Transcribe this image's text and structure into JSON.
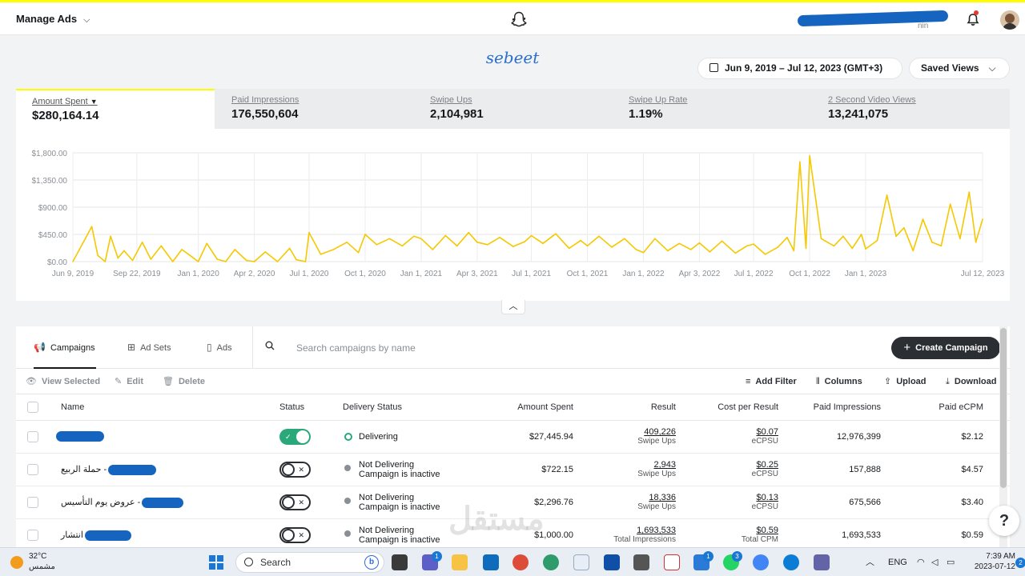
{
  "header": {
    "manage_label": "Manage Ads",
    "user_suffix": "nin"
  },
  "brand": "sebeet",
  "date_range": "Jun 9, 2019 – Jul 12, 2023 (GMT+3)",
  "saved_views": "Saved Views",
  "stats": [
    {
      "label": "Amount Spent",
      "value": "$280,164.14"
    },
    {
      "label": "Paid Impressions",
      "value": "176,550,604"
    },
    {
      "label": "Swipe Ups",
      "value": "2,104,981"
    },
    {
      "label": "Swipe Up Rate",
      "value": "1.19%"
    },
    {
      "label": "2 Second Video Views",
      "value": "13,241,075"
    }
  ],
  "chart_data": {
    "type": "line",
    "title": "",
    "xlabel": "",
    "ylabel": "",
    "color": "#f5c800",
    "ylim": [
      0,
      1800
    ],
    "yticks": [
      "$1,800.00",
      "$1,350.00",
      "$900.00",
      "$450.00",
      "$0.00"
    ],
    "ytick_values": [
      1800,
      1350,
      900,
      450,
      0
    ],
    "xticks": [
      "Jun 9, 2019",
      "Sep 22, 2019",
      "Jan 1, 2020",
      "Apr 2, 2020",
      "Jul 1, 2020",
      "Oct 1, 2020",
      "Jan 1, 2021",
      "Apr 3, 2021",
      "Jul 1, 2021",
      "Oct 1, 2021",
      "Jan 1, 2022",
      "Apr 3, 2022",
      "Jul 1, 2022",
      "Oct 1, 2022",
      "Jan 1, 2023",
      "Jul 12, 2023"
    ],
    "xtick_dates": [
      "2019-06-09",
      "2019-09-22",
      "2020-01-01",
      "2020-04-02",
      "2020-07-01",
      "2020-10-01",
      "2021-01-01",
      "2021-04-03",
      "2021-07-01",
      "2021-10-01",
      "2022-01-01",
      "2022-04-03",
      "2022-07-01",
      "2022-10-01",
      "2023-01-01",
      "2023-07-12"
    ],
    "series": [
      {
        "x": [
          "2019-06-09",
          "2019-07-10",
          "2019-07-20",
          "2019-08-01",
          "2019-08-10",
          "2019-08-22",
          "2019-09-01",
          "2019-09-15",
          "2019-10-01",
          "2019-10-15",
          "2019-11-01",
          "2019-11-20",
          "2019-12-05",
          "2019-12-20",
          "2020-01-01",
          "2020-01-15",
          "2020-02-01",
          "2020-02-15",
          "2020-03-01",
          "2020-03-20",
          "2020-04-02",
          "2020-04-20",
          "2020-05-10",
          "2020-05-30",
          "2020-06-10",
          "2020-06-25",
          "2020-07-01",
          "2020-07-20",
          "2020-08-10",
          "2020-09-01",
          "2020-09-20",
          "2020-10-01",
          "2020-10-20",
          "2020-11-10",
          "2020-12-01",
          "2020-12-20",
          "2021-01-01",
          "2021-01-20",
          "2021-02-10",
          "2021-03-01",
          "2021-03-20",
          "2021-04-03",
          "2021-04-20",
          "2021-05-10",
          "2021-06-01",
          "2021-06-20",
          "2021-07-01",
          "2021-07-20",
          "2021-08-10",
          "2021-09-01",
          "2021-09-20",
          "2021-10-01",
          "2021-10-20",
          "2021-11-10",
          "2021-12-01",
          "2021-12-20",
          "2022-01-01",
          "2022-01-20",
          "2022-02-10",
          "2022-03-01",
          "2022-03-20",
          "2022-04-03",
          "2022-04-20",
          "2022-05-10",
          "2022-06-01",
          "2022-06-20",
          "2022-07-01",
          "2022-07-20",
          "2022-08-10",
          "2022-08-25",
          "2022-09-05",
          "2022-09-15",
          "2022-09-25",
          "2022-10-01",
          "2022-10-20",
          "2022-11-10",
          "2022-11-25",
          "2022-12-10",
          "2022-12-25",
          "2023-01-01",
          "2023-01-20",
          "2023-02-05",
          "2023-02-20",
          "2023-03-05",
          "2023-03-20",
          "2023-04-05",
          "2023-04-20",
          "2023-05-05",
          "2023-05-20",
          "2023-06-05",
          "2023-06-20",
          "2023-07-01",
          "2023-07-12"
        ],
        "y": [
          0,
          580,
          100,
          0,
          420,
          60,
          180,
          20,
          320,
          40,
          260,
          0,
          200,
          90,
          0,
          300,
          40,
          0,
          200,
          20,
          0,
          160,
          0,
          220,
          30,
          0,
          480,
          120,
          200,
          320,
          150,
          450,
          280,
          380,
          260,
          420,
          380,
          200,
          430,
          260,
          480,
          320,
          280,
          400,
          250,
          330,
          430,
          300,
          460,
          220,
          350,
          260,
          420,
          240,
          380,
          200,
          150,
          380,
          180,
          300,
          200,
          310,
          160,
          340,
          140,
          260,
          290,
          120,
          240,
          400,
          180,
          1650,
          220,
          1750,
          380,
          260,
          420,
          220,
          450,
          210,
          350,
          1100,
          420,
          560,
          180,
          700,
          320,
          260,
          950,
          380,
          1150,
          320,
          700
        ]
      }
    ]
  },
  "tabs": {
    "campaigns": "Campaigns",
    "adsets": "Ad Sets",
    "ads": "Ads"
  },
  "search": {
    "placeholder": "Search campaigns by name"
  },
  "create_label": "Create Campaign",
  "toolbar": {
    "view_selected": "View Selected",
    "edit": "Edit",
    "delete": "Delete",
    "add_filter": "Add Filter",
    "columns": "Columns",
    "upload": "Upload",
    "download": "Download"
  },
  "columns": {
    "name": "Name",
    "status": "Status",
    "delivery": "Delivery Status",
    "amount": "Amount Spent",
    "result": "Result",
    "cpr": "Cost per Result",
    "impressions": "Paid Impressions",
    "ecpm": "Paid eCPM"
  },
  "rows": [
    {
      "name": "",
      "status": "on",
      "delivery": "Delivering",
      "delivery2": "",
      "amount": "$27,445.94",
      "result": "409,226",
      "result_type": "Swipe Ups",
      "cpr": "$0.07",
      "cpr_type": "eCPSU",
      "impressions": "12,976,399",
      "ecpm": "$2.12"
    },
    {
      "name": "حملة الربيع -",
      "status": "off",
      "delivery": "Not Delivering",
      "delivery2": "Campaign is inactive",
      "amount": "$722.15",
      "result": "2,943",
      "result_type": "Swipe Ups",
      "cpr": "$0.25",
      "cpr_type": "eCPSU",
      "impressions": "157,888",
      "ecpm": "$4.57"
    },
    {
      "name": "عروض يوم التأسيس -",
      "status": "off",
      "delivery": "Not Delivering",
      "delivery2": "Campaign is inactive",
      "amount": "$2,296.76",
      "result": "18,336",
      "result_type": "Swipe Ups",
      "cpr": "$0.13",
      "cpr_type": "eCPSU",
      "impressions": "675,566",
      "ecpm": "$3.40"
    },
    {
      "name": "انتشار",
      "status": "off",
      "delivery": "Not Delivering",
      "delivery2": "Campaign is inactive",
      "amount": "$1,000.00",
      "result": "1,693,533",
      "result_type": "Total Impressions",
      "cpr": "$0.59",
      "cpr_type": "Total CPM",
      "impressions": "1,693,533",
      "ecpm": "$0.59"
    }
  ],
  "watermark": "مستقل",
  "taskbar": {
    "temp": "32°C",
    "weather": "مشمس",
    "search": "Search",
    "badges": [
      "1",
      "1",
      "3"
    ],
    "lang": "ENG",
    "time": "7:39 AM",
    "date": "2023-07-12",
    "notif": "2"
  }
}
